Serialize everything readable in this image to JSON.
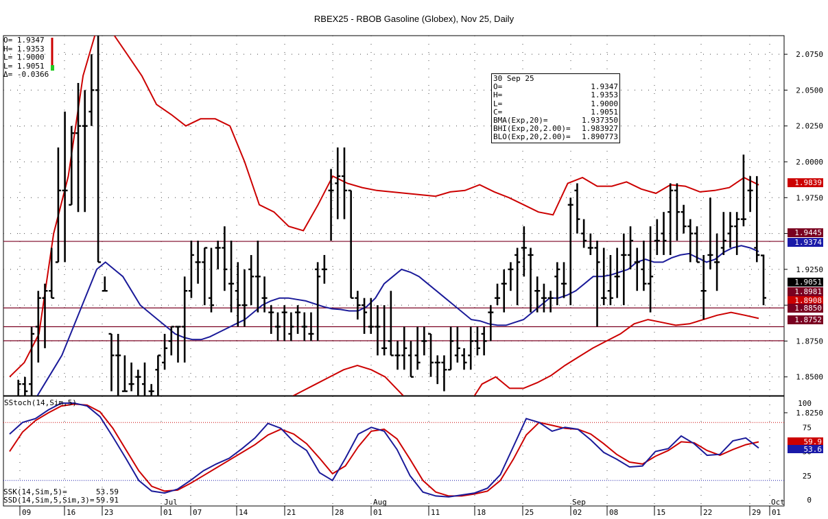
{
  "chart_title": "RBEX25 - RBOB Gasoline (Globex), Nov 25, Daily",
  "ohlc_box": [
    {
      "label": "O=",
      "value": "1.9347"
    },
    {
      "label": "H=",
      "value": "1.9353"
    },
    {
      "label": "L=",
      "value": "1.9000"
    },
    {
      "label": "L=",
      "value": "1.9051"
    },
    {
      "label": "Δ=",
      "value": "-0.0366"
    }
  ],
  "info_box": {
    "date": "30 Sep 25",
    "rows": [
      {
        "label": "O=",
        "value": "1.9347"
      },
      {
        "label": "H=",
        "value": "1.9353"
      },
      {
        "label": "L=",
        "value": "1.9000"
      },
      {
        "label": "C=",
        "value": "1.9051"
      },
      {
        "label": "BMA(Exp,20)=",
        "value": "1.937350"
      },
      {
        "label": "BHI(Exp,20,2.00)=",
        "value": "1.983927"
      },
      {
        "label": "BLO(Exp,20,2.00)=",
        "value": "1.890773"
      }
    ]
  },
  "stoch_panel": {
    "title": "SStoch(14,Sim,5)",
    "ssk_label": "SSK(14,Sim,5)=",
    "ssk_value": "53.59",
    "ssd_label": "SSD(14,Sim,5,Sim,3)=",
    "ssd_value": "59.91"
  },
  "colors": {
    "bollinger": "#cc0000",
    "ma": "#1a1a99",
    "hline": "#7a0020",
    "stoch_k": "#1a1a99",
    "stoch_d": "#cc0000",
    "price_tag": "#000000"
  },
  "chart_data": [
    {
      "type": "ohlc",
      "ylim": [
        1.8125,
        2.0975
      ],
      "y_ticks": [
        "1.8250",
        "1.8500",
        "1.8750",
        "1.9000",
        "1.9250",
        "1.9500",
        "1.9750",
        "2.0000",
        "2.0250",
        "2.0500",
        "2.0750"
      ],
      "x_tick_labels": [
        "09",
        "16",
        "23",
        "01",
        "07",
        "14",
        "21",
        "28",
        "01",
        "11",
        "18",
        "25",
        "02",
        "08",
        "15",
        "22",
        "29",
        "01"
      ],
      "month_labels": [
        "Jul",
        "Aug",
        "Sep",
        "Oct"
      ],
      "bars": [
        [
          1.82,
          1.83,
          1.81,
          1.825
        ],
        [
          1.83,
          1.848,
          1.815,
          1.845
        ],
        [
          1.845,
          1.85,
          1.835,
          1.84
        ],
        [
          1.845,
          1.885,
          1.83,
          1.88
        ],
        [
          1.885,
          1.91,
          1.86,
          1.905
        ],
        [
          1.905,
          1.915,
          1.87,
          1.91
        ],
        [
          1.91,
          1.94,
          1.905,
          1.905
        ],
        [
          1.93,
          2.01,
          1.93,
          1.98
        ],
        [
          1.98,
          2.035,
          1.93,
          1.98
        ],
        [
          1.97,
          2.025,
          1.97,
          2.02
        ],
        [
          2.02,
          2.055,
          1.965,
          2.025
        ],
        [
          2.025,
          2.05,
          1.965,
          2.025
        ],
        [
          2.035,
          2.075,
          2.025,
          2.05
        ],
        [
          2.05,
          2.095,
          1.93,
          1.93
        ],
        [
          1.91,
          1.92,
          1.91,
          1.91
        ],
        [
          1.88,
          1.88,
          1.84,
          1.865
        ],
        [
          1.865,
          1.88,
          1.835,
          1.865
        ],
        [
          1.84,
          1.865,
          1.84,
          1.84
        ],
        [
          1.845,
          1.86,
          1.84,
          1.845
        ],
        [
          1.85,
          1.855,
          1.825,
          1.85
        ],
        [
          1.845,
          1.86,
          1.82,
          1.83
        ],
        [
          1.84,
          1.845,
          1.825,
          1.84
        ],
        [
          1.855,
          1.865,
          1.825,
          1.865
        ],
        [
          1.86,
          1.88,
          1.855,
          1.87
        ],
        [
          1.875,
          1.885,
          1.865,
          1.885
        ],
        [
          1.885,
          1.885,
          1.86,
          1.885
        ],
        [
          1.885,
          1.92,
          1.86,
          1.91
        ],
        [
          1.91,
          1.945,
          1.905,
          1.935
        ],
        [
          1.93,
          1.945,
          1.915,
          1.93
        ],
        [
          1.93,
          1.94,
          1.9,
          1.94
        ],
        [
          1.905,
          1.94,
          1.895,
          1.9
        ],
        [
          1.94,
          1.945,
          1.925,
          1.94
        ],
        [
          1.94,
          1.955,
          1.91,
          1.925
        ],
        [
          1.915,
          1.945,
          1.895,
          1.915
        ],
        [
          1.91,
          1.93,
          1.885,
          1.9
        ],
        [
          1.9,
          1.925,
          1.885,
          1.9
        ],
        [
          1.925,
          1.935,
          1.9,
          1.92
        ],
        [
          1.92,
          1.945,
          1.895,
          1.92
        ],
        [
          1.905,
          1.92,
          1.895,
          1.905
        ],
        [
          1.895,
          1.9,
          1.88,
          1.895
        ],
        [
          1.885,
          1.895,
          1.875,
          1.885
        ],
        [
          1.895,
          1.9,
          1.875,
          1.895
        ],
        [
          1.88,
          1.895,
          1.875,
          1.885
        ],
        [
          1.895,
          1.9,
          1.88,
          1.895
        ],
        [
          1.885,
          1.895,
          1.875,
          1.885
        ],
        [
          1.88,
          1.895,
          1.875,
          1.88
        ],
        [
          1.925,
          1.93,
          1.875,
          1.92
        ],
        [
          1.925,
          1.935,
          1.915,
          1.925
        ],
        [
          1.98,
          1.995,
          1.945,
          1.98
        ],
        [
          1.985,
          2.01,
          1.96,
          1.99
        ],
        [
          1.99,
          2.01,
          1.96,
          1.98
        ],
        [
          1.98,
          1.98,
          1.905,
          1.905
        ],
        [
          1.905,
          1.91,
          1.89,
          1.9
        ],
        [
          1.9,
          1.905,
          1.88,
          1.895
        ],
        [
          1.885,
          1.905,
          1.88,
          1.885
        ],
        [
          1.885,
          1.9,
          1.865,
          1.885
        ],
        [
          1.87,
          1.9,
          1.865,
          1.87
        ],
        [
          1.875,
          1.91,
          1.865,
          1.865
        ],
        [
          1.865,
          1.875,
          1.855,
          1.865
        ],
        [
          1.865,
          1.885,
          1.855,
          1.87
        ],
        [
          1.865,
          1.875,
          1.85,
          1.85
        ],
        [
          1.865,
          1.885,
          1.855,
          1.86
        ],
        [
          1.875,
          1.885,
          1.865,
          1.875
        ],
        [
          1.88,
          1.88,
          1.85,
          1.86
        ],
        [
          1.86,
          1.865,
          1.845,
          1.86
        ],
        [
          1.86,
          1.865,
          1.84,
          1.855
        ],
        [
          1.855,
          1.885,
          1.855,
          1.875
        ],
        [
          1.865,
          1.885,
          1.86,
          1.87
        ],
        [
          1.865,
          1.87,
          1.855,
          1.86
        ],
        [
          1.865,
          1.885,
          1.855,
          1.875
        ],
        [
          1.875,
          1.885,
          1.865,
          1.87
        ],
        [
          1.88,
          1.885,
          1.865,
          1.875
        ],
        [
          1.895,
          1.9,
          1.875,
          1.895
        ],
        [
          1.905,
          1.915,
          1.9,
          1.905
        ],
        [
          1.915,
          1.925,
          1.895,
          1.915
        ],
        [
          1.925,
          1.93,
          1.91,
          1.925
        ],
        [
          1.935,
          1.94,
          1.9,
          1.93
        ],
        [
          1.94,
          1.955,
          1.92,
          1.94
        ],
        [
          1.935,
          1.94,
          1.895,
          1.935
        ],
        [
          1.91,
          1.92,
          1.895,
          1.91
        ],
        [
          1.905,
          1.915,
          1.895,
          1.905
        ],
        [
          1.905,
          1.91,
          1.895,
          1.905
        ],
        [
          1.92,
          1.93,
          1.9,
          1.925
        ],
        [
          1.915,
          1.93,
          1.905,
          1.915
        ],
        [
          1.97,
          1.975,
          1.9,
          1.97
        ],
        [
          1.98,
          1.985,
          1.95,
          1.96
        ],
        [
          1.95,
          1.96,
          1.94,
          1.945
        ],
        [
          1.94,
          1.95,
          1.935,
          1.94
        ],
        [
          1.94,
          1.945,
          1.885,
          1.93
        ],
        [
          1.905,
          1.94,
          1.9,
          1.905
        ],
        [
          1.91,
          1.935,
          1.9,
          1.905
        ],
        [
          1.92,
          1.94,
          1.905,
          1.92
        ],
        [
          1.935,
          1.95,
          1.9,
          1.935
        ],
        [
          1.935,
          1.955,
          1.925,
          1.945
        ],
        [
          1.93,
          1.94,
          1.91,
          1.93
        ],
        [
          1.925,
          1.945,
          1.91,
          1.915
        ],
        [
          1.915,
          1.955,
          1.895,
          1.92
        ],
        [
          1.945,
          1.96,
          1.935,
          1.945
        ],
        [
          1.95,
          1.965,
          1.935,
          1.945
        ],
        [
          1.965,
          1.985,
          1.935,
          1.98
        ],
        [
          1.98,
          1.985,
          1.945,
          1.965
        ],
        [
          1.965,
          1.97,
          1.95,
          1.955
        ],
        [
          1.955,
          1.96,
          1.93,
          1.95
        ],
        [
          1.95,
          1.955,
          1.93,
          1.93
        ],
        [
          1.91,
          1.935,
          1.89,
          1.91
        ],
        [
          1.935,
          1.975,
          1.925,
          1.935
        ],
        [
          1.93,
          1.95,
          1.91,
          1.93
        ],
        [
          1.94,
          1.965,
          1.935,
          1.945
        ],
        [
          1.95,
          1.965,
          1.94,
          1.955
        ],
        [
          1.955,
          1.965,
          1.935,
          1.96
        ],
        [
          1.96,
          2.005,
          1.955,
          1.96
        ],
        [
          1.98,
          1.99,
          1.965,
          1.98
        ],
        [
          1.94,
          1.99,
          1.93,
          1.935
        ],
        [
          1.9347,
          1.9353,
          1.9,
          1.9051
        ]
      ],
      "bma": [
        1.805,
        1.815,
        1.825,
        1.835,
        1.845,
        1.855,
        1.865,
        1.88,
        1.895,
        1.91,
        1.925,
        1.93,
        1.925,
        1.92,
        1.91,
        1.9,
        1.895,
        1.89,
        1.885,
        1.88,
        1.8775,
        1.876,
        1.876,
        1.878,
        1.881,
        1.884,
        1.887,
        1.89,
        1.895,
        1.9,
        1.903,
        1.905,
        1.905,
        1.904,
        1.903,
        1.901,
        1.899,
        1.8975,
        1.897,
        1.896,
        1.896,
        1.899,
        1.905,
        1.915,
        1.92,
        1.925,
        1.923,
        1.92,
        1.915,
        1.91,
        1.905,
        1.9,
        1.895,
        1.89,
        1.889,
        1.887,
        1.886,
        1.886,
        1.888,
        1.89,
        1.895,
        1.9,
        1.905,
        1.905,
        1.907,
        1.91,
        1.915,
        1.92,
        1.92,
        1.921,
        1.923,
        1.925,
        1.93,
        1.932,
        1.93,
        1.93,
        1.933,
        1.935,
        1.936,
        1.933,
        1.93,
        1.932,
        1.937,
        1.94,
        1.9415,
        1.94,
        1.9374
      ],
      "bhi": [
        1.85,
        1.86,
        1.88,
        1.95,
        1.99,
        2.06,
        2.095,
        2.09,
        2.075,
        2.06,
        2.04,
        2.033,
        2.025,
        2.03,
        2.03,
        2.025,
        2.0,
        1.97,
        1.965,
        1.955,
        1.952,
        1.97,
        1.99,
        1.985,
        1.982,
        1.98,
        1.979,
        1.978,
        1.977,
        1.976,
        1.979,
        1.98,
        1.984,
        1.979,
        1.975,
        1.97,
        1.965,
        1.963,
        1.985,
        1.989,
        1.983,
        1.983,
        1.986,
        1.981,
        1.978,
        1.984,
        1.983,
        1.979,
        1.98,
        1.982,
        1.989,
        1.9839
      ],
      "blo": [
        1.835,
        1.835,
        1.84,
        1.845,
        1.85,
        1.855,
        1.858,
        1.855,
        1.85,
        1.84,
        1.83,
        1.82,
        1.81,
        1.81,
        1.83,
        1.845,
        1.85,
        1.842,
        1.842,
        1.846,
        1.851,
        1.858,
        1.864,
        1.87,
        1.875,
        1.88,
        1.887,
        1.89,
        1.888,
        1.886,
        1.887,
        1.89,
        1.893,
        1.895,
        1.893,
        1.8908
      ],
      "h_lines": [
        1.9445,
        1.8981,
        1.885,
        1.8752
      ],
      "price_tags": [
        {
          "value": "1.9839",
          "bg": "#cc0000"
        },
        {
          "value": "1.9445",
          "bg": "#7a0020"
        },
        {
          "value": "1.9374",
          "bg": "#1a1aa8"
        },
        {
          "value": "1.9051",
          "bg": "#000000"
        },
        {
          "value": "1.8981",
          "bg": "#7a0020"
        },
        {
          "value": "1.8908",
          "bg": "#cc0000"
        },
        {
          "value": "1.8850",
          "bg": "#7a0020"
        },
        {
          "value": "1.8752",
          "bg": "#7a0020"
        }
      ]
    },
    {
      "type": "line",
      "title": "SStoch(14,Sim,5)",
      "ylim": [
        0,
        100
      ],
      "y_ticks": [
        "100",
        "75",
        "50",
        "25",
        "0"
      ],
      "ref_lines": [
        80,
        20
      ],
      "series": [
        {
          "name": "SSK(14,Sim,5)",
          "values": [
            68,
            80,
            84,
            93,
            100,
            100,
            97,
            86,
            65,
            43,
            20,
            9,
            7,
            11,
            20,
            30,
            37,
            43,
            53,
            64,
            79,
            74,
            60,
            51,
            28,
            20,
            43,
            68,
            75,
            71,
            52,
            25,
            8,
            4,
            3,
            5,
            7,
            12,
            26,
            55,
            84,
            80,
            71,
            75,
            73,
            62,
            49,
            42,
            34,
            35,
            50,
            53,
            66,
            58,
            46,
            47,
            61,
            64,
            53.59
          ]
        },
        {
          "name": "SSD(14,Sim,5,Sim,3)",
          "values": [
            50,
            70,
            82,
            90,
            97,
            99,
            98,
            91,
            74,
            52,
            30,
            14,
            9,
            10,
            17,
            25,
            33,
            41,
            49,
            57,
            67,
            73,
            68,
            58,
            43,
            27,
            35,
            55,
            71,
            73,
            63,
            42,
            20,
            8,
            4,
            4,
            6,
            9,
            20,
            42,
            67,
            80,
            77,
            74,
            73,
            68,
            58,
            47,
            39,
            37,
            45,
            51,
            60,
            59,
            51,
            46,
            52,
            57,
            59.91
          ]
        }
      ],
      "price_tags": [
        {
          "value": "59.9",
          "bg": "#cc0000"
        },
        {
          "value": "53.6",
          "bg": "#1a1aa8"
        }
      ]
    }
  ]
}
